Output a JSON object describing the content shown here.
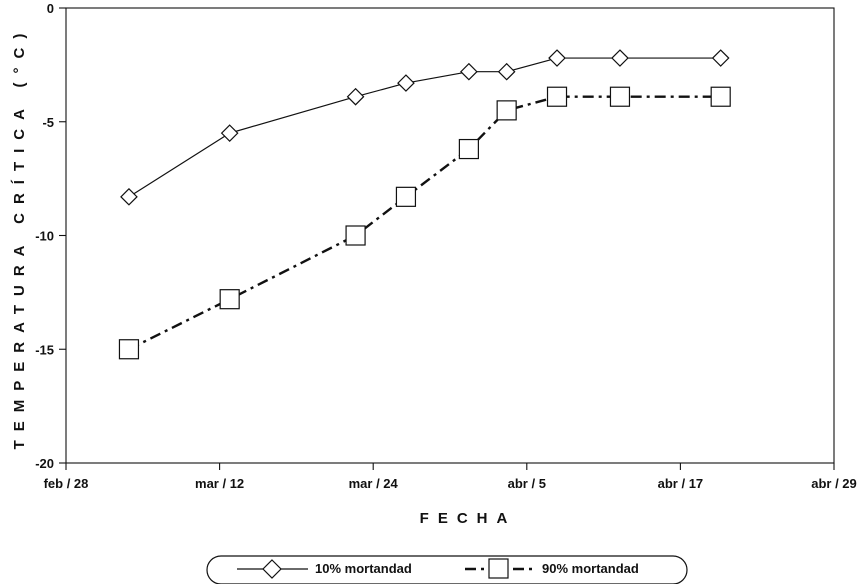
{
  "chart_data": {
    "type": "line",
    "xlabel": "FECHA",
    "ylabel": "TEMPERATURA CRÍTICA (°C)",
    "x_ticks": [
      "feb / 28",
      "mar / 12",
      "mar / 24",
      "abr / 5",
      "abr / 17",
      "abr / 29"
    ],
    "y_ticks": [
      "0",
      "-5",
      "-10",
      "-15",
      "-20"
    ],
    "xlim": [
      "2000-02-28",
      "2000-04-29"
    ],
    "ylim": [
      -20,
      0
    ],
    "grid": false,
    "legend": "bottom",
    "series": [
      {
        "name": "10% mortandad",
        "marker": "diamond",
        "line_style": "solid",
        "x": [
          "2000-03-04",
          "2000-03-12",
          "2000-03-22",
          "2000-03-26",
          "2000-03-31",
          "2000-04-03",
          "2000-04-07",
          "2000-04-12",
          "2000-04-20"
        ],
        "y": [
          -8.3,
          -5.5,
          -3.9,
          -3.3,
          -2.8,
          -2.8,
          -2.2,
          -2.2,
          -2.2
        ]
      },
      {
        "name": "90% mortandad",
        "marker": "square",
        "line_style": "dash-dot",
        "x": [
          "2000-03-04",
          "2000-03-12",
          "2000-03-22",
          "2000-03-26",
          "2000-03-31",
          "2000-04-03",
          "2000-04-07",
          "2000-04-12",
          "2000-04-20"
        ],
        "y": [
          -15.0,
          -12.8,
          -10.0,
          -8.3,
          -6.2,
          -4.5,
          -3.9,
          -3.9,
          -3.9
        ]
      }
    ]
  }
}
